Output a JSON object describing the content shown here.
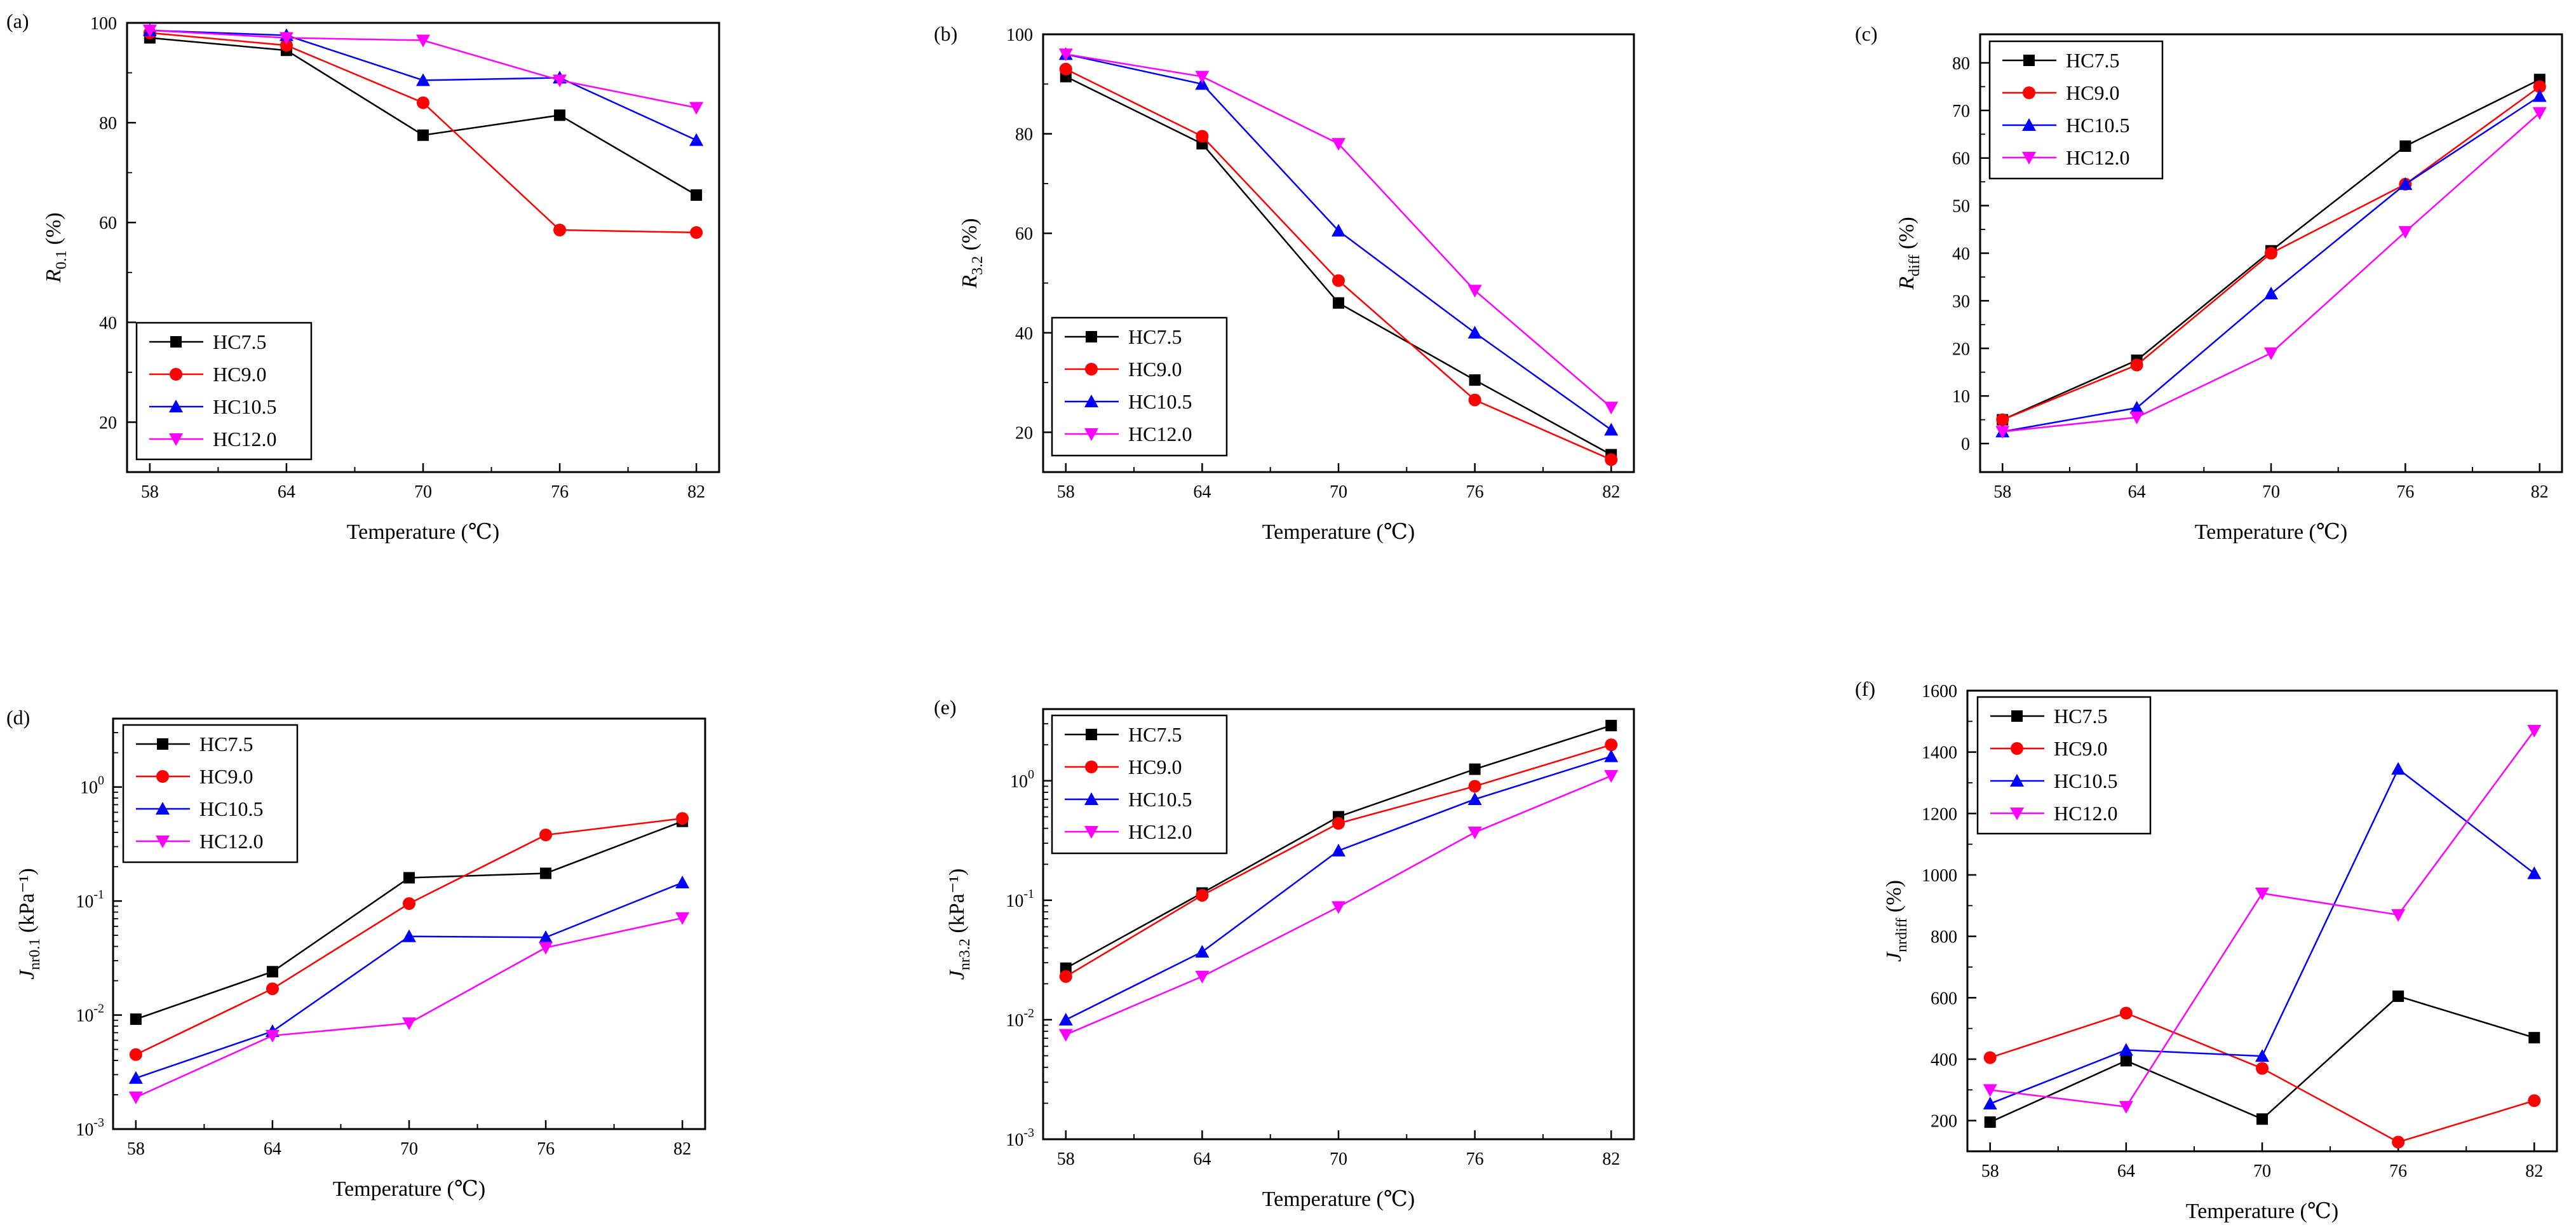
{
  "series_styles": [
    {
      "name": "HC7.5",
      "color": "#000000",
      "marker": "square"
    },
    {
      "name": "HC9.0",
      "color": "#ff0000",
      "marker": "circle"
    },
    {
      "name": "HC10.5",
      "color": "#0000ff",
      "marker": "triangle-up"
    },
    {
      "name": "HC12.0",
      "color": "#ff00ff",
      "marker": "triangle-down"
    }
  ],
  "chart_data": [
    {
      "panel": "(a)",
      "type": "line",
      "yscale": "linear",
      "xlabel": "Temperature (℃)",
      "ylabel_main": "R",
      "ylabel_sub": "0.1",
      "ylabel_unit": " (%)",
      "x": [
        58,
        64,
        70,
        76,
        82
      ],
      "xlim": [
        57,
        83
      ],
      "ylim": [
        10,
        100
      ],
      "yticks": [
        20,
        40,
        60,
        80,
        100
      ],
      "legend": "bottom-left",
      "series": [
        {
          "name": "HC7.5",
          "values": [
            97,
            94.5,
            77.5,
            81.5,
            65.5
          ]
        },
        {
          "name": "HC9.0",
          "values": [
            98,
            95.5,
            84,
            58.5,
            58
          ]
        },
        {
          "name": "HC10.5",
          "values": [
            98.5,
            97.5,
            88.5,
            89,
            76.5
          ]
        },
        {
          "name": "HC12.0",
          "values": [
            98.5,
            97,
            96.5,
            88.5,
            83
          ]
        }
      ]
    },
    {
      "panel": "(b)",
      "type": "line",
      "yscale": "linear",
      "xlabel": "Temperature (℃)",
      "ylabel_main": "R",
      "ylabel_sub": "3.2",
      "ylabel_unit": " (%)",
      "x": [
        58,
        64,
        70,
        76,
        82
      ],
      "xlim": [
        57,
        83
      ],
      "ylim": [
        12,
        100
      ],
      "yticks": [
        20,
        40,
        60,
        80,
        100
      ],
      "legend": "bottom-left",
      "series": [
        {
          "name": "HC7.5",
          "values": [
            91.5,
            78,
            46,
            30.5,
            15.5
          ]
        },
        {
          "name": "HC9.0",
          "values": [
            93,
            79.5,
            50.5,
            26.5,
            14.5
          ]
        },
        {
          "name": "HC10.5",
          "values": [
            96,
            90,
            60.5,
            40,
            20.5
          ]
        },
        {
          "name": "HC12.0",
          "values": [
            96,
            91.5,
            78,
            48.5,
            25
          ]
        }
      ]
    },
    {
      "panel": "(c)",
      "type": "line",
      "yscale": "linear",
      "xlabel": "Temperature (℃)",
      "ylabel_main": "R",
      "ylabel_sub": "diff",
      "ylabel_unit": " (%)",
      "x": [
        58,
        64,
        70,
        76,
        82
      ],
      "xlim": [
        57,
        83
      ],
      "ylim": [
        -6,
        86
      ],
      "yticks": [
        0,
        10,
        20,
        30,
        40,
        50,
        60,
        70,
        80
      ],
      "legend": "top-left",
      "series": [
        {
          "name": "HC7.5",
          "values": [
            5,
            17.5,
            40.5,
            62.5,
            76.5
          ]
        },
        {
          "name": "HC9.0",
          "values": [
            5,
            16.5,
            40,
            54.5,
            75
          ]
        },
        {
          "name": "HC10.5",
          "values": [
            2.5,
            7.5,
            31.5,
            54.5,
            73
          ]
        },
        {
          "name": "HC12.0",
          "values": [
            2.5,
            5.5,
            19,
            44.5,
            69.5
          ]
        }
      ]
    },
    {
      "panel": "(d)",
      "type": "line",
      "yscale": "log",
      "xlabel": "Temperature (℃)",
      "ylabel_main": "J",
      "ylabel_sub": "nr0.1",
      "ylabel_unit": " (kPa⁻¹)",
      "x": [
        58,
        64,
        70,
        76,
        82
      ],
      "xlim": [
        57,
        83
      ],
      "ylim_exp": [
        -3,
        0.6
      ],
      "yticks_exp": [
        -3,
        -2,
        -1,
        0
      ],
      "ytick_labels": [
        {
          "base": "10",
          "exp": "-3"
        },
        {
          "base": "10",
          "exp": "-2"
        },
        {
          "base": "10",
          "exp": "-1"
        },
        {
          "base": "10",
          "exp": "0"
        }
      ],
      "legend": "top-left",
      "series": [
        {
          "name": "HC7.5",
          "values": [
            0.0092,
            0.024,
            0.16,
            0.175,
            0.5
          ]
        },
        {
          "name": "HC9.0",
          "values": [
            0.0045,
            0.017,
            0.095,
            0.38,
            0.53
          ]
        },
        {
          "name": "HC10.5",
          "values": [
            0.0028,
            0.0072,
            0.049,
            0.048,
            0.145
          ]
        },
        {
          "name": "HC12.0",
          "values": [
            0.0019,
            0.0066,
            0.0085,
            0.039,
            0.071
          ]
        }
      ]
    },
    {
      "panel": "(e)",
      "type": "line",
      "yscale": "log",
      "xlabel": "Temperature (℃)",
      "ylabel_main": "J",
      "ylabel_sub": "nr3.2",
      "ylabel_unit": " (kPa⁻¹)",
      "x": [
        58,
        64,
        70,
        76,
        82
      ],
      "xlim": [
        57,
        83
      ],
      "ylim_exp": [
        -3,
        0.6
      ],
      "yticks_exp": [
        -3,
        -2,
        -1,
        0
      ],
      "ytick_labels": [
        {
          "base": "10",
          "exp": "-3"
        },
        {
          "base": "10",
          "exp": "-2"
        },
        {
          "base": "10",
          "exp": "-1"
        },
        {
          "base": "10",
          "exp": "0"
        }
      ],
      "legend": "top-left",
      "series": [
        {
          "name": "HC7.5",
          "values": [
            0.027,
            0.115,
            0.5,
            1.25,
            2.9
          ]
        },
        {
          "name": "HC9.0",
          "values": [
            0.023,
            0.11,
            0.44,
            0.9,
            2.0
          ]
        },
        {
          "name": "HC10.5",
          "values": [
            0.01,
            0.037,
            0.26,
            0.7,
            1.6
          ]
        },
        {
          "name": "HC12.0",
          "values": [
            0.0075,
            0.023,
            0.088,
            0.37,
            1.1
          ]
        }
      ]
    },
    {
      "panel": "(f)",
      "type": "line",
      "yscale": "linear",
      "xlabel": "Temperature (℃)",
      "ylabel_main": "J",
      "ylabel_sub": "nrdiff",
      "ylabel_unit": " (%)",
      "x": [
        58,
        64,
        70,
        76,
        82
      ],
      "xlim": [
        57,
        83
      ],
      "ylim": [
        100,
        1600
      ],
      "yticks": [
        200,
        400,
        600,
        800,
        1000,
        1200,
        1400,
        1600
      ],
      "legend": "top-left",
      "series": [
        {
          "name": "HC7.5",
          "values": [
            195,
            395,
            205,
            605,
            470
          ]
        },
        {
          "name": "HC9.0",
          "values": [
            405,
            550,
            370,
            130,
            265
          ]
        },
        {
          "name": "HC10.5",
          "values": [
            255,
            430,
            410,
            1345,
            1005
          ]
        },
        {
          "name": "HC12.0",
          "values": [
            300,
            245,
            940,
            870,
            1470
          ]
        }
      ]
    }
  ]
}
